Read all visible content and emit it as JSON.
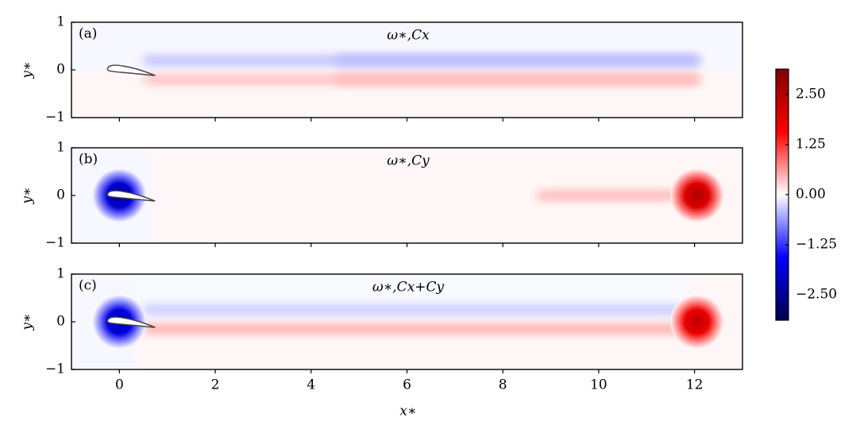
{
  "chart_data": {
    "type": "contour",
    "xlabel": "x∗",
    "ylabel": "y∗",
    "xlim": [
      -1,
      13
    ],
    "xticks": [
      0,
      2,
      4,
      6,
      8,
      10,
      12
    ],
    "ylim": [
      -1,
      1
    ],
    "yticks": [
      {
        "value": -1,
        "label": "−1"
      },
      0,
      1
    ],
    "clim": [
      -3.13,
      3.13
    ],
    "colormap": [
      "#00004d",
      "#0000ff",
      "#ffffff",
      "#ff0000",
      "#800000"
    ],
    "cticks": [
      {
        "value": -2.5,
        "label": "−2.50"
      },
      {
        "value": -1.25,
        "label": "−1.25"
      },
      {
        "value": 0,
        "label": "0.00"
      },
      {
        "value": 1.25,
        "label": "1.25"
      },
      {
        "value": 2.5,
        "label": "2.50"
      }
    ],
    "panels": [
      {
        "label": "(a)",
        "title": "ω∗,Cx",
        "regions": [
          {
            "x": [
              -1,
              13
            ],
            "y": [
              0,
              1
            ],
            "value": -0.05
          },
          {
            "x": [
              -1,
              13
            ],
            "y": [
              -1,
              0
            ],
            "value": 0.05
          }
        ],
        "streaks": [
          {
            "x": [
              0.5,
              12.1
            ],
            "y": 0.2,
            "value": -0.35
          },
          {
            "x": [
              4.5,
              12.1
            ],
            "y": 0.2,
            "value": -0.4
          },
          {
            "x": [
              0.5,
              12.1
            ],
            "y": -0.2,
            "value": 0.35
          },
          {
            "x": [
              4.5,
              12.1
            ],
            "y": -0.2,
            "value": 0.4
          }
        ],
        "vortices": []
      },
      {
        "label": "(b)",
        "title": "ω∗,Cy",
        "regions": [
          {
            "x": [
              -1,
              0.6
            ],
            "y": [
              -1,
              1
            ],
            "value": -0.05
          },
          {
            "x": [
              0.6,
              13
            ],
            "y": [
              -1,
              1
            ],
            "value": 0.05
          }
        ],
        "streaks": [
          {
            "x": [
              8.7,
              12.1
            ],
            "y": 0,
            "value": 0.4
          }
        ],
        "vortices": [
          {
            "x": 0,
            "y": 0,
            "value": -2.6,
            "radius": 0.35
          },
          {
            "x": 12.05,
            "y": 0,
            "value": 2.6,
            "radius": 0.35
          }
        ]
      },
      {
        "label": "(c)",
        "title": "ω∗,Cx+Cy",
        "regions": [
          {
            "x": [
              -1,
              0.3
            ],
            "y": [
              -1,
              1
            ],
            "value": -0.05
          },
          {
            "x": [
              0.3,
              13
            ],
            "y": [
              -1,
              0
            ],
            "value": 0.05
          },
          {
            "x": [
              0.3,
              11.8
            ],
            "y": [
              0,
              1
            ],
            "value": -0.04
          },
          {
            "x": [
              11.8,
              13
            ],
            "y": [
              0,
              1
            ],
            "value": 0.05
          }
        ],
        "streaks": [
          {
            "x": [
              0.5,
              11.8
            ],
            "y": 0.25,
            "value": -0.3
          },
          {
            "x": [
              0.5,
              12.1
            ],
            "y": -0.15,
            "value": 0.45
          }
        ],
        "vortices": [
          {
            "x": 0,
            "y": 0,
            "value": -2.4,
            "radius": 0.35
          },
          {
            "x": 12.05,
            "y": 0,
            "value": 2.4,
            "radius": 0.35
          }
        ]
      }
    ]
  }
}
